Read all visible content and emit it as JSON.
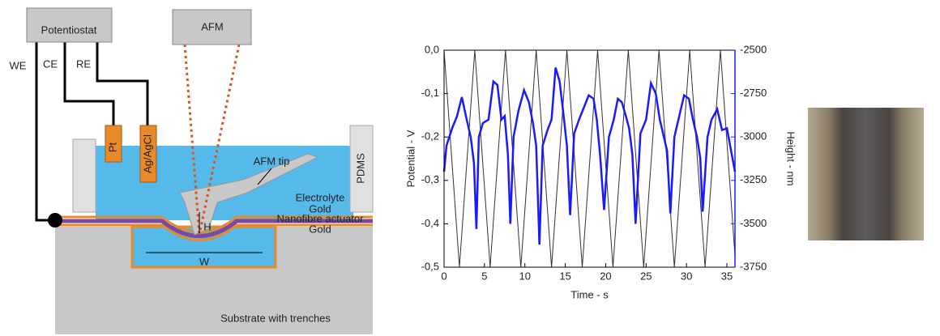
{
  "diagram": {
    "potentiostat": "Potentiostat",
    "afm": "AFM",
    "we": "WE",
    "ce": "CE",
    "re": "RE",
    "pt": "Pt",
    "ref_electrode": "Ag/AgCl",
    "afm_tip": "AFM tip",
    "pdms": "PDMS",
    "electrolyte": "Electrolyte",
    "gold_top": "Gold",
    "actuator": "Nanofibre actuator",
    "gold_bottom": "Gold",
    "height": "H",
    "width": "W",
    "substrate": "Substrate with trenches"
  },
  "chart_data": {
    "type": "line",
    "xlabel": "Time - s",
    "ylabel": "Potential - V",
    "y2label": "Height - nm",
    "xlim": [
      0,
      36
    ],
    "xticks": [
      0,
      5,
      10,
      15,
      20,
      25,
      30,
      35
    ],
    "ylim": [
      -0.5,
      0.0
    ],
    "yticks": [
      {
        "value": 0.0,
        "label": "0,0"
      },
      {
        "value": -0.1,
        "label": "-0,1"
      },
      {
        "value": -0.2,
        "label": "-0,2"
      },
      {
        "value": -0.3,
        "label": "-0,3"
      },
      {
        "value": -0.4,
        "label": "-0,4"
      },
      {
        "value": -0.5,
        "label": "-0,5"
      }
    ],
    "y2lim": [
      -3750,
      -2500
    ],
    "y2ticks": [
      -2500,
      -2750,
      -3000,
      -3250,
      -3500,
      -3750
    ],
    "series": [
      {
        "color": "#333333",
        "x": [
          0,
          1.9,
          3.8,
          5.7,
          7.6,
          9.5,
          11.4,
          13.3,
          15.2,
          17.1,
          19.0,
          20.9,
          22.8,
          24.7,
          26.6,
          28.5,
          30.4,
          32.3,
          34.2,
          36
        ],
        "values": [
          0.0,
          -0.5,
          0.0,
          -0.5,
          0.0,
          -0.5,
          0.0,
          -0.5,
          0.0,
          -0.5,
          0.0,
          -0.5,
          0.0,
          -0.5,
          0.0,
          -0.5,
          0.0,
          -0.5,
          0.0,
          -0.474
        ]
      },
      {
        "color": "#1a1aff",
        "axis": "y2",
        "x": [
          0,
          0.3,
          1,
          1.6,
          2.2,
          2.8,
          3.3,
          3.7,
          4.0,
          4.3,
          4.8,
          5.5,
          6.1,
          6.6,
          7.1,
          7.5,
          7.9,
          8.2,
          8.6,
          9.2,
          9.9,
          10.5,
          11.0,
          11.4,
          11.8,
          12.2,
          12.8,
          13.3,
          13.8,
          14.3,
          14.8,
          15.2,
          15.6,
          16.1,
          16.7,
          17.3,
          17.9,
          18.5,
          18.9,
          19.3,
          19.8,
          20.4,
          21.0,
          21.5,
          22.0,
          22.5,
          22.9,
          23.3,
          23.7,
          24.3,
          25.0,
          25.6,
          26.2,
          26.7,
          27.2,
          27.6,
          28.0,
          28.5,
          29.1,
          29.7,
          30.3,
          30.8,
          31.3,
          31.7,
          32.0,
          32.6,
          33.1,
          33.8,
          34.4,
          35.0,
          35.6,
          36.0
        ],
        "values": [
          -3200,
          -3050,
          -2950,
          -2880,
          -2770,
          -2900,
          -3000,
          -3150,
          -3530,
          -3000,
          -2920,
          -2900,
          -2680,
          -2700,
          -2900,
          -2880,
          -3100,
          -3500,
          -3000,
          -2850,
          -2730,
          -2800,
          -2920,
          -3050,
          -3620,
          -3050,
          -2960,
          -2900,
          -2600,
          -2680,
          -2880,
          -3050,
          -3450,
          -2980,
          -2900,
          -2830,
          -2760,
          -2780,
          -2900,
          -3100,
          -3420,
          -3000,
          -2900,
          -2780,
          -2800,
          -2880,
          -2950,
          -3100,
          -3500,
          -2980,
          -2900,
          -2690,
          -2750,
          -2900,
          -3000,
          -3080,
          -3440,
          -3000,
          -2880,
          -2760,
          -2780,
          -2900,
          -3000,
          -3120,
          -3430,
          -3000,
          -2900,
          -2840,
          -2960,
          -2950,
          -3100,
          -3200
        ]
      }
    ]
  }
}
